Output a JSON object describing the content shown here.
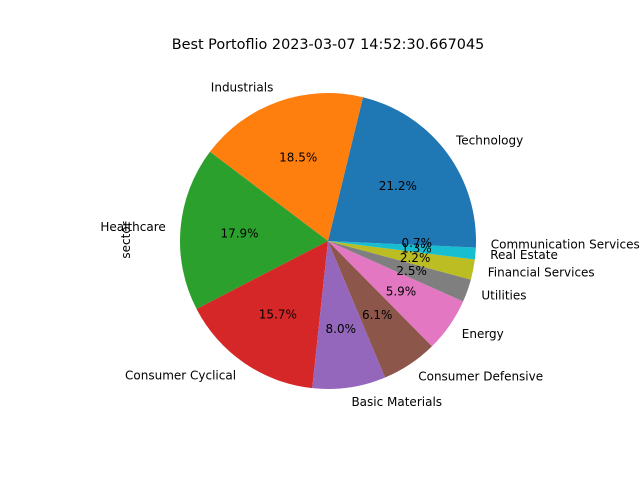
{
  "chart_data": {
    "type": "pie",
    "title": "Best Portoflio 2023-03-07 14:52:30.667045",
    "ylabel": "sector",
    "start_angle_deg": 0,
    "direction": "counterclockwise",
    "slices": [
      {
        "label": "Technology",
        "value": 21.2,
        "pct_label": "21.2%",
        "color": "#1f77b4"
      },
      {
        "label": "Industrials",
        "value": 18.5,
        "pct_label": "18.5%",
        "color": "#ff7f0e"
      },
      {
        "label": "Healthcare",
        "value": 17.9,
        "pct_label": "17.9%",
        "color": "#2ca02c"
      },
      {
        "label": "Consumer Cyclical",
        "value": 15.7,
        "pct_label": "15.7%",
        "color": "#d62728"
      },
      {
        "label": "Basic Materials",
        "value": 8.0,
        "pct_label": "8.0%",
        "color": "#9467bd"
      },
      {
        "label": "Consumer Defensive",
        "value": 6.1,
        "pct_label": "6.1%",
        "color": "#8c564b"
      },
      {
        "label": "Energy",
        "value": 5.9,
        "pct_label": "5.9%",
        "color": "#e377c2"
      },
      {
        "label": "Utilities",
        "value": 2.5,
        "pct_label": "2.5%",
        "color": "#7f7f7f"
      },
      {
        "label": "Financial Services",
        "value": 2.2,
        "pct_label": "2.2%",
        "color": "#bcbd22"
      },
      {
        "label": "Real Estate",
        "value": 1.3,
        "pct_label": "1.3%",
        "color": "#17becf"
      },
      {
        "label": "Communication Services",
        "value": 0.7,
        "pct_label": "0.7%",
        "color": "#1f77b4"
      }
    ]
  }
}
